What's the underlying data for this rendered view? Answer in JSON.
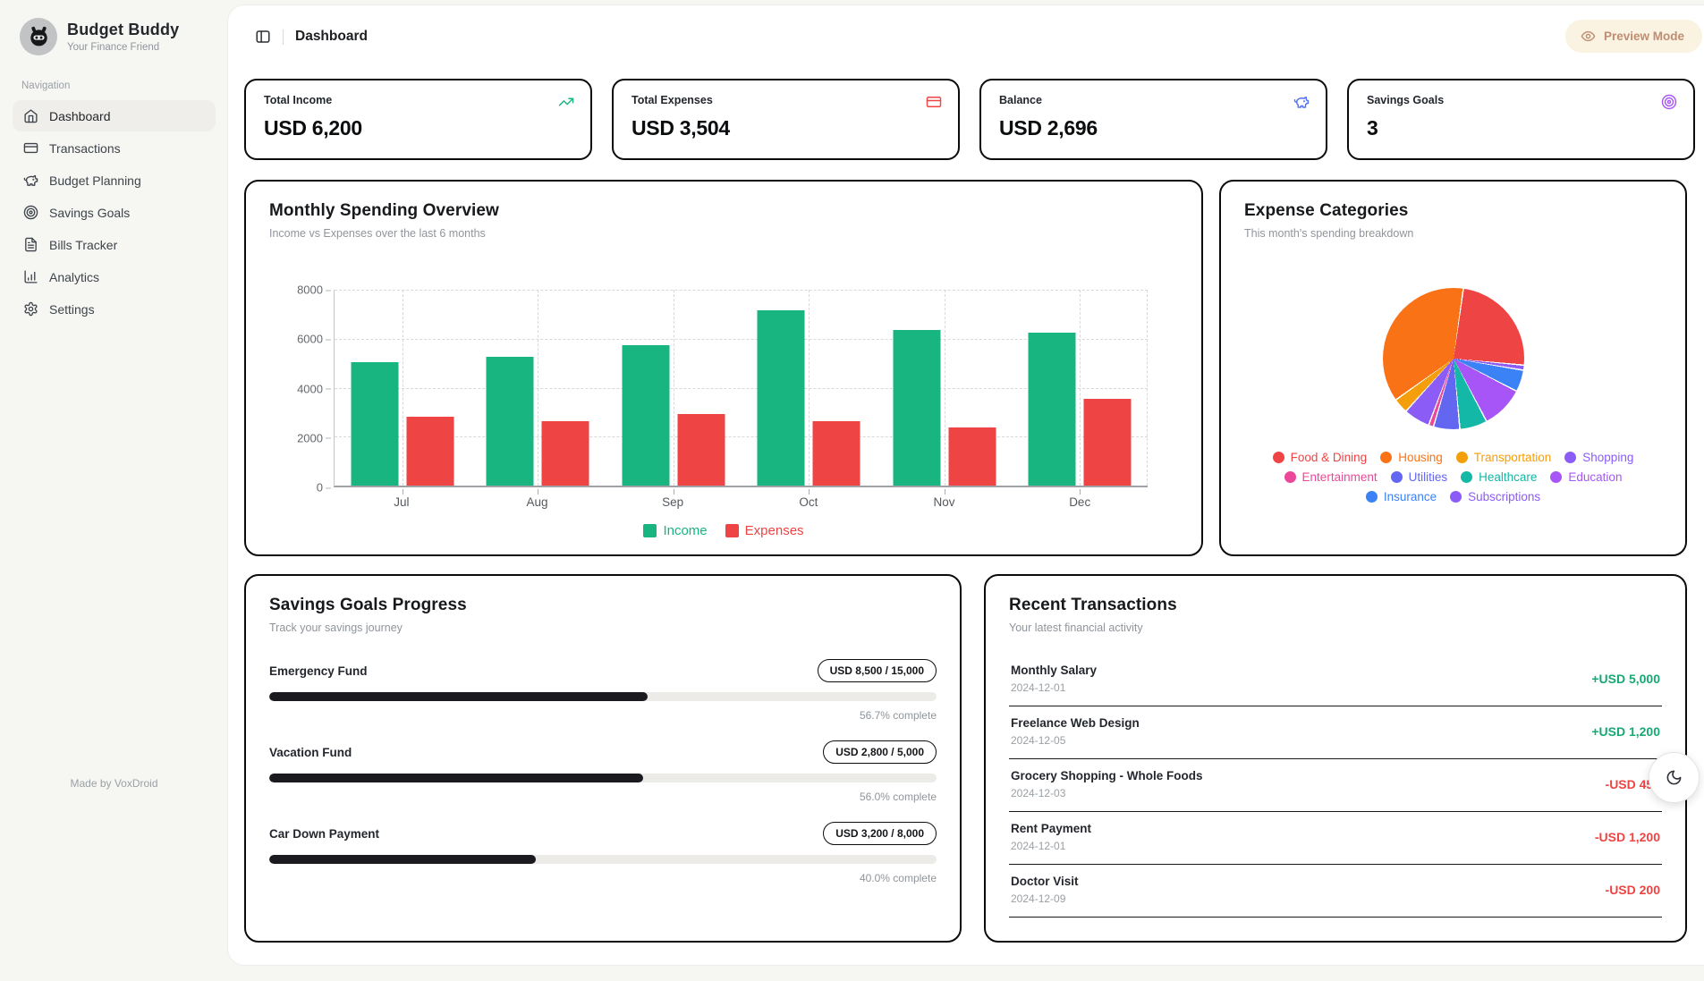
{
  "app": {
    "name": "Budget Buddy",
    "tagline": "Your Finance Friend",
    "footer": "Made by VoxDroid"
  },
  "sidebar": {
    "section_label": "Navigation",
    "items": [
      {
        "label": "Dashboard",
        "icon": "home-icon",
        "active": true
      },
      {
        "label": "Transactions",
        "icon": "credit-card-icon",
        "active": false
      },
      {
        "label": "Budget Planning",
        "icon": "piggy-bank-icon",
        "active": false
      },
      {
        "label": "Savings Goals",
        "icon": "target-icon",
        "active": false
      },
      {
        "label": "Bills Tracker",
        "icon": "file-text-icon",
        "active": false
      },
      {
        "label": "Analytics",
        "icon": "bar-chart-icon",
        "active": false
      },
      {
        "label": "Settings",
        "icon": "gear-icon",
        "active": false
      }
    ]
  },
  "header": {
    "title": "Dashboard",
    "preview_label": "Preview Mode",
    "toggle_icon": "panel-left-icon",
    "preview_icon": "eye-icon"
  },
  "stats": [
    {
      "label": "Total Income",
      "value": "USD 6,200",
      "icon": "trending-up-icon",
      "accent": "#18b581"
    },
    {
      "label": "Total Expenses",
      "value": "USD 3,504",
      "icon": "credit-card-icon",
      "accent": "#ee4444"
    },
    {
      "label": "Balance",
      "value": "USD 2,696",
      "icon": "piggy-bank-icon",
      "accent": "#5472f4"
    },
    {
      "label": "Savings Goals",
      "value": "3",
      "icon": "target-icon",
      "accent": "#a855f7"
    }
  ],
  "chart_data": [
    {
      "type": "bar",
      "title": "Monthly Spending Overview",
      "subtitle": "Income vs Expenses over the last 6 months",
      "categories": [
        "Jul",
        "Aug",
        "Sep",
        "Oct",
        "Nov",
        "Dec"
      ],
      "series": [
        {
          "name": "Income",
          "color": "#18b581",
          "values": [
            5000,
            5200,
            5700,
            7100,
            6300,
            6200
          ]
        },
        {
          "name": "Expenses",
          "color": "#ee4444",
          "values": [
            2800,
            2600,
            2900,
            2600,
            2350,
            3504
          ]
        }
      ],
      "ylim": [
        0,
        8000
      ],
      "yticks": [
        0,
        2000,
        4000,
        6000,
        8000
      ],
      "grid": true,
      "legend_position": "bottom"
    },
    {
      "type": "pie",
      "title": "Expense Categories",
      "subtitle": "This month's spending breakdown",
      "total": 3504,
      "slices": [
        {
          "label": "Food & Dining",
          "value": 850,
          "color": "#ef4444"
        },
        {
          "label": "Housing",
          "value": 1300,
          "color": "#f97316"
        },
        {
          "label": "Transportation",
          "value": 120,
          "color": "#f59e0b"
        },
        {
          "label": "Shopping",
          "value": 210,
          "color": "#8b5cf6"
        },
        {
          "label": "Entertainment",
          "value": 40,
          "color": "#ec4899"
        },
        {
          "label": "Utilities",
          "value": 210,
          "color": "#6366f1"
        },
        {
          "label": "Healthcare",
          "value": 220,
          "color": "#14b8a6"
        },
        {
          "label": "Education",
          "value": 340,
          "color": "#a855f7"
        },
        {
          "label": "Insurance",
          "value": 174,
          "color": "#3b82f6"
        },
        {
          "label": "Subscriptions",
          "value": 40,
          "color": "#8b5cf6"
        }
      ],
      "start_offset_deg": 8,
      "draw_order": [
        0,
        9,
        8,
        7,
        6,
        5,
        4,
        3,
        2,
        1
      ],
      "legend_position": "bottom"
    }
  ],
  "savings": {
    "title": "Savings Goals Progress",
    "subtitle": "Track your savings journey",
    "goals": [
      {
        "name": "Emergency Fund",
        "badge": "USD 8,500 / 15,000",
        "percent": 56.7,
        "percent_label": "56.7% complete"
      },
      {
        "name": "Vacation Fund",
        "badge": "USD 2,800 / 5,000",
        "percent": 56.0,
        "percent_label": "56.0% complete"
      },
      {
        "name": "Car Down Payment",
        "badge": "USD 3,200 / 8,000",
        "percent": 40.0,
        "percent_label": "40.0% complete"
      }
    ]
  },
  "transactions": {
    "title": "Recent Transactions",
    "subtitle": "Your latest financial activity",
    "items": [
      {
        "name": "Monthly Salary",
        "date": "2024-12-01",
        "amount": "+USD 5,000",
        "direction": "income"
      },
      {
        "name": "Freelance Web Design",
        "date": "2024-12-05",
        "amount": "+USD 1,200",
        "direction": "income"
      },
      {
        "name": "Grocery Shopping - Whole Foods",
        "date": "2024-12-03",
        "amount": "-USD 450",
        "direction": "expense"
      },
      {
        "name": "Rent Payment",
        "date": "2024-12-01",
        "amount": "-USD 1,200",
        "direction": "expense"
      },
      {
        "name": "Doctor Visit",
        "date": "2024-12-09",
        "amount": "-USD 200",
        "direction": "expense"
      }
    ]
  },
  "theme_toggle": {
    "icon": "moon-icon"
  }
}
